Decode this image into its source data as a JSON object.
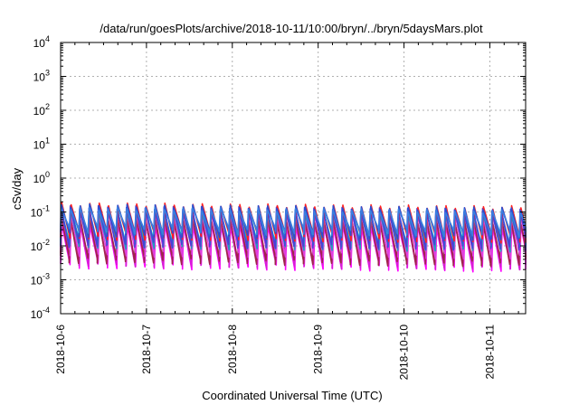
{
  "chart_data": {
    "type": "line",
    "title": "/data/run/goesPlots/archive/2018-10-11/10:00/bryn/../bryn/5daysMars.plot",
    "xlabel": "Coordinated Universal Time (UTC)",
    "ylabel": "cSv/day",
    "yscale": "log",
    "ylim": [
      0.0001,
      10000
    ],
    "y_ticks": [
      {
        "value": 0.0001,
        "base": "10",
        "exp": "-4"
      },
      {
        "value": 0.001,
        "base": "10",
        "exp": "-3"
      },
      {
        "value": 0.01,
        "base": "10",
        "exp": "-2"
      },
      {
        "value": 0.1,
        "base": "10",
        "exp": "-1"
      },
      {
        "value": 1,
        "base": "10",
        "exp": "0"
      },
      {
        "value": 10,
        "base": "10",
        "exp": "1"
      },
      {
        "value": 100,
        "base": "10",
        "exp": "2"
      },
      {
        "value": 1000,
        "base": "10",
        "exp": "3"
      },
      {
        "value": 10000,
        "base": "10",
        "exp": "4"
      }
    ],
    "xlim": [
      "2018-10-06T00:00",
      "2018-10-11T10:00"
    ],
    "x_ticks": [
      "2018-10-6",
      "2018-10-7",
      "2018-10-8",
      "2018-10-9",
      "2018-10-10",
      "2018-10-11"
    ],
    "grid": true,
    "legend": "none",
    "pattern": {
      "cycle_hours": 2.62,
      "start": "2018-10-06T00:00"
    },
    "series": [
      {
        "color": "#ff00ff",
        "peak": 0.045,
        "trough": 0.0028,
        "peak_slope": -0.02
      },
      {
        "color": "#d81ad8",
        "peak": 0.055,
        "trough": 0.0032,
        "peak_slope": -0.02
      },
      {
        "color": "#c2338c",
        "peak": 0.07,
        "trough": 0.0045,
        "peak_slope": -0.02
      },
      {
        "color": "#a0244c",
        "peak": 0.08,
        "trough": 0.004,
        "peak_slope": -0.02
      },
      {
        "color": "#e040e0",
        "peak": 0.1,
        "trough": 0.0065,
        "peak_slope": -0.02
      },
      {
        "color": "#1f9fbf",
        "peak": 0.11,
        "trough": 0.011,
        "peak_slope": -0.02
      },
      {
        "color": "#00c8c0",
        "peak": 0.12,
        "trough": 0.016,
        "peak_slope": -0.02
      },
      {
        "color": "#4a3fd8",
        "peak": 0.14,
        "trough": 0.012,
        "peak_slope": -0.02
      },
      {
        "color": "#ff2020",
        "peak": 0.17,
        "trough": 0.02,
        "peak_slope": -0.02
      },
      {
        "color": "#2a4fd0",
        "peak": 0.155,
        "trough": 0.024,
        "peak_slope": -0.02
      },
      {
        "color": "#3a7fe0",
        "peak": 0.13,
        "trough": 0.03,
        "peak_slope": -0.02
      }
    ]
  }
}
